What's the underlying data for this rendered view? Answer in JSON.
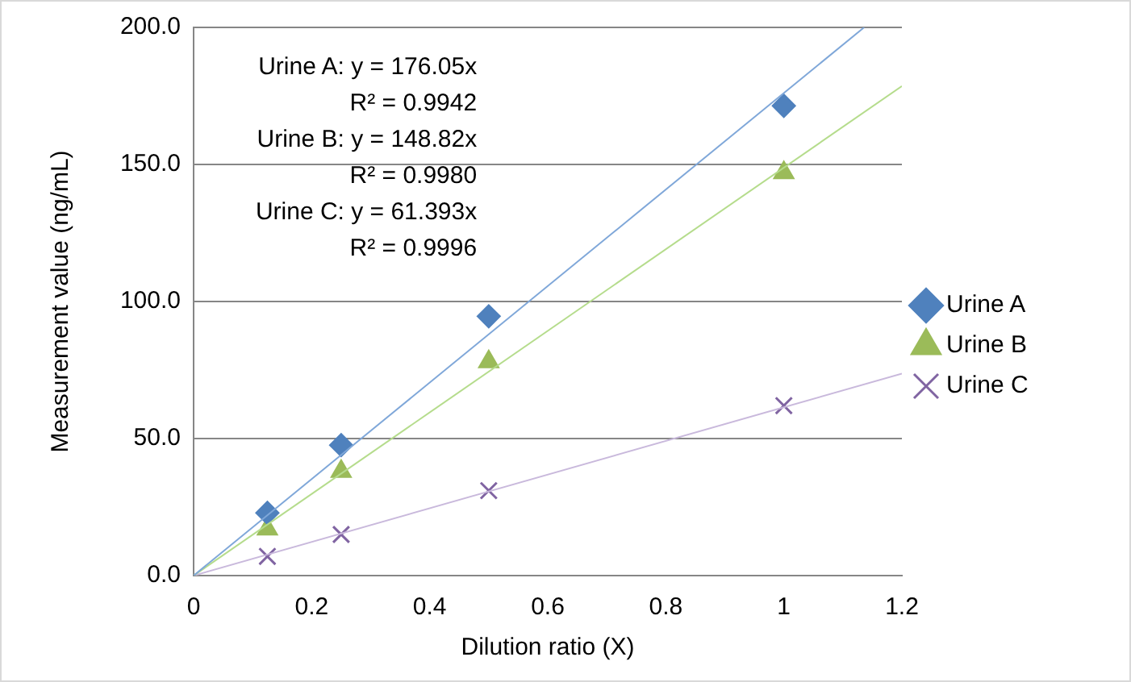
{
  "chart_data": {
    "type": "scatter",
    "xlabel": "Dilution ratio (X)",
    "ylabel": "Measurement value (ng/mL)",
    "xlim": [
      0,
      1.2
    ],
    "xticks": [
      0,
      0.2,
      0.4,
      0.6,
      0.8,
      1,
      1.2
    ],
    "ylim": [
      0,
      200
    ],
    "yticks": [
      {
        "value": 0,
        "label": "0.0"
      },
      {
        "value": 50,
        "label": "50.0"
      },
      {
        "value": 100,
        "label": "100.0"
      },
      {
        "value": 150,
        "label": "150.0"
      },
      {
        "value": 200,
        "label": "200.0"
      }
    ],
    "grid": "y",
    "legend": "right",
    "annotations": [
      "Urine A: y = 176.05x",
      "R² = 0.9942",
      "Urine B: y = 148.82x",
      "R² = 0.9980",
      "Urine C: y = 61.393x",
      "R² = 0.9996"
    ],
    "series": [
      {
        "type": "line",
        "color": "#7fa7d9",
        "x": [
          0,
          1.136
        ],
        "values": [
          0,
          200
        ],
        "marker": "none"
      },
      {
        "type": "line",
        "color": "#b5dc8c",
        "x": [
          0,
          1.2
        ],
        "values": [
          0,
          178.6
        ],
        "marker": "none"
      },
      {
        "type": "line",
        "color": "#c9b9dc",
        "x": [
          0,
          1.2
        ],
        "values": [
          0,
          73.7
        ],
        "marker": "none"
      },
      {
        "type": "scatter",
        "name": "Urine A",
        "color": "#4f81bd",
        "marker": "diamond",
        "x": [
          0.125,
          0.25,
          0.5,
          1
        ],
        "values": [
          22.9,
          47.6,
          94.6,
          171.4
        ]
      },
      {
        "type": "scatter",
        "name": "Urine B",
        "color": "#9bbb59",
        "marker": "triangle",
        "x": [
          0.125,
          0.25,
          0.5,
          1
        ],
        "values": [
          17,
          38,
          78,
          147
        ]
      },
      {
        "type": "scatter",
        "name": "Urine C",
        "color": "#8064a2",
        "marker": "cross",
        "x": [
          0.125,
          0.25,
          0.5,
          1
        ],
        "values": [
          7,
          15,
          31,
          62
        ]
      }
    ]
  }
}
